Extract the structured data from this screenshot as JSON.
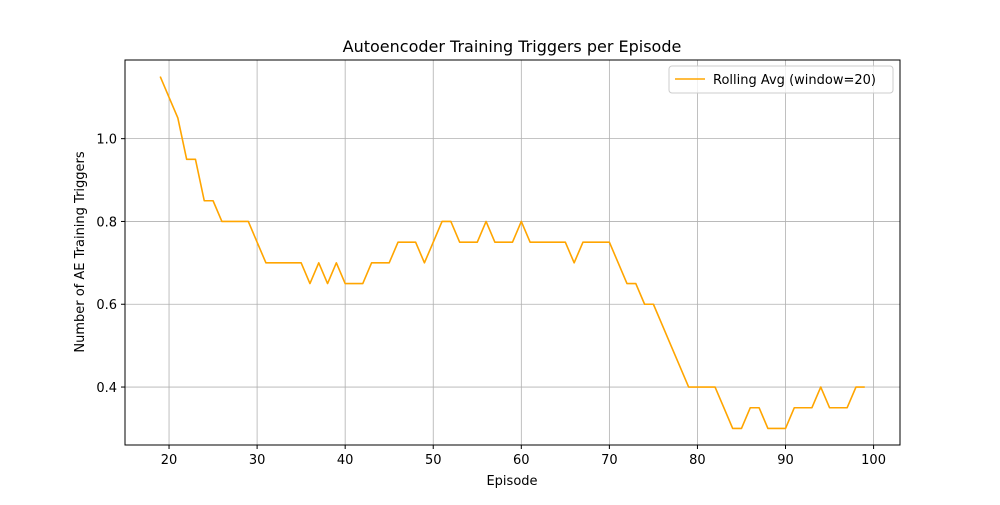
{
  "chart_data": {
    "type": "line",
    "title": "Autoencoder Training Triggers per Episode",
    "xlabel": "Episode",
    "ylabel": "Number of AE Training Triggers",
    "xlim": [
      15,
      103
    ],
    "ylim": [
      0.26,
      1.19
    ],
    "xticks": [
      20,
      30,
      40,
      50,
      60,
      70,
      80,
      90,
      100
    ],
    "yticks": [
      0.4,
      0.6,
      0.8,
      1.0
    ],
    "ytick_labels": [
      "0.4",
      "0.6",
      "0.8",
      "1.0"
    ],
    "grid": true,
    "legend_position": "top-right",
    "series": [
      {
        "name": "Rolling Avg (window=20)",
        "color": "#ffa500",
        "x": [
          19,
          20,
          21,
          22,
          23,
          24,
          25,
          26,
          27,
          28,
          29,
          30,
          31,
          32,
          33,
          34,
          35,
          36,
          37,
          38,
          39,
          40,
          41,
          42,
          43,
          44,
          45,
          46,
          47,
          48,
          49,
          50,
          51,
          52,
          53,
          54,
          55,
          56,
          57,
          58,
          59,
          60,
          61,
          62,
          63,
          64,
          65,
          66,
          67,
          68,
          69,
          70,
          71,
          72,
          73,
          74,
          75,
          76,
          77,
          78,
          79,
          80,
          81,
          82,
          83,
          84,
          85,
          86,
          87,
          88,
          89,
          90,
          91,
          92,
          93,
          94,
          95,
          96,
          97,
          98,
          99
        ],
        "y": [
          1.15,
          1.1,
          1.05,
          0.95,
          0.95,
          0.85,
          0.85,
          0.8,
          0.8,
          0.8,
          0.8,
          0.75,
          0.7,
          0.7,
          0.7,
          0.7,
          0.7,
          0.65,
          0.7,
          0.65,
          0.7,
          0.65,
          0.65,
          0.65,
          0.7,
          0.7,
          0.7,
          0.75,
          0.75,
          0.75,
          0.7,
          0.75,
          0.8,
          0.8,
          0.75,
          0.75,
          0.75,
          0.8,
          0.75,
          0.75,
          0.75,
          0.8,
          0.75,
          0.75,
          0.75,
          0.75,
          0.75,
          0.7,
          0.75,
          0.75,
          0.75,
          0.75,
          0.7,
          0.65,
          0.65,
          0.6,
          0.6,
          0.55,
          0.5,
          0.45,
          0.4,
          0.4,
          0.4,
          0.4,
          0.35,
          0.3,
          0.3,
          0.35,
          0.35,
          0.3,
          0.3,
          0.3,
          0.35,
          0.35,
          0.35,
          0.4,
          0.35,
          0.35,
          0.35,
          0.4,
          0.4
        ]
      }
    ]
  }
}
